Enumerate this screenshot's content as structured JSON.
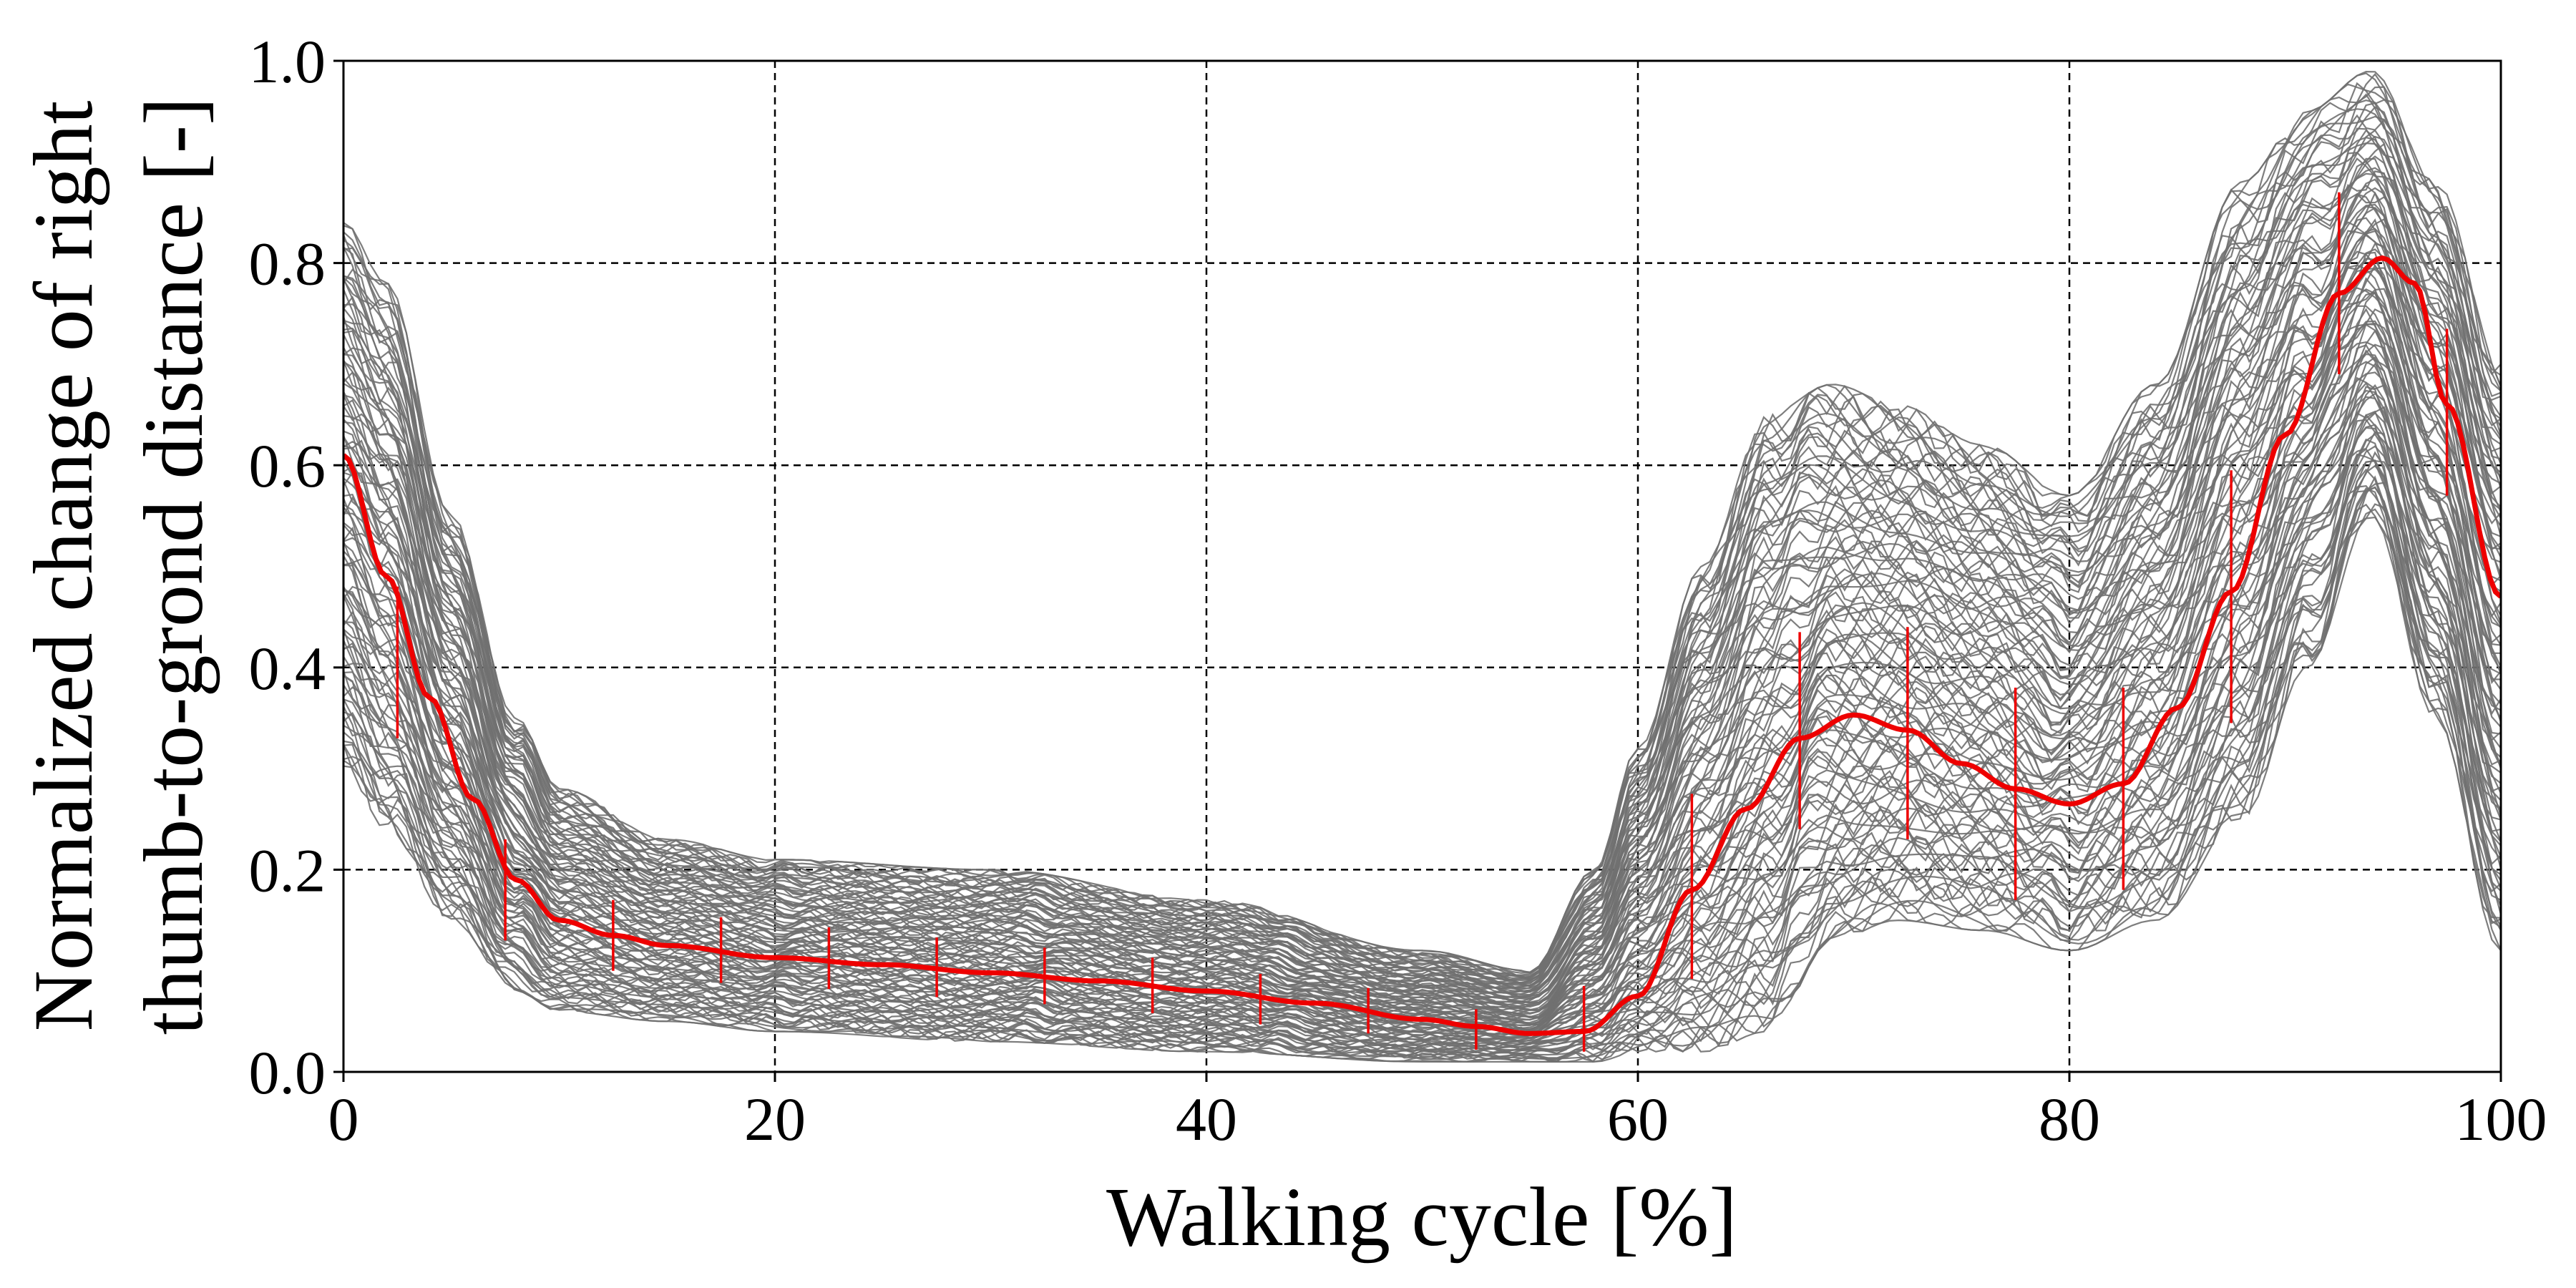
{
  "chart_data": {
    "type": "line",
    "xlabel": "Walking cycle [%]",
    "ylabel_lines": [
      "Normalized change of right",
      "thumb-to-grond distance [-]"
    ],
    "xlim": [
      0,
      100
    ],
    "ylim": [
      0,
      1.0
    ],
    "xticks": [
      0,
      20,
      40,
      60,
      80,
      100
    ],
    "yticks": [
      0.0,
      0.2,
      0.4,
      0.6,
      0.8,
      1.0
    ],
    "xtick_labels": [
      "0",
      "20",
      "40",
      "60",
      "80",
      "100"
    ],
    "ytick_labels": [
      "0.0",
      "0.2",
      "0.4",
      "0.6",
      "0.8",
      "1.0"
    ],
    "grid": true,
    "colors": {
      "trials": "#707070",
      "mean": "#ee0000",
      "grid": "#000000"
    },
    "trial_band": {
      "x": [
        0,
        2,
        5,
        8,
        10,
        15,
        20,
        30,
        40,
        50,
        55,
        58,
        60,
        63,
        66,
        69,
        72,
        76,
        80,
        84,
        88,
        91,
        94,
        97,
        100
      ],
      "lower": [
        0.3,
        0.24,
        0.15,
        0.08,
        0.06,
        0.05,
        0.04,
        0.03,
        0.02,
        0.01,
        0.01,
        0.01,
        0.02,
        0.02,
        0.04,
        0.13,
        0.15,
        0.14,
        0.12,
        0.15,
        0.25,
        0.4,
        0.55,
        0.35,
        0.12
      ],
      "upper": [
        0.84,
        0.78,
        0.55,
        0.35,
        0.28,
        0.23,
        0.21,
        0.2,
        0.17,
        0.12,
        0.1,
        0.2,
        0.32,
        0.5,
        0.65,
        0.68,
        0.66,
        0.62,
        0.57,
        0.68,
        0.88,
        0.95,
        0.99,
        0.88,
        0.7
      ]
    },
    "series": [
      {
        "name": "",
        "x": [
          0,
          2,
          4,
          6,
          8,
          10,
          12.5,
          15,
          20,
          25,
          30,
          35,
          40,
          45,
          50,
          52.5,
          55,
          57.5,
          60,
          62.5,
          65,
          67.5,
          70,
          72.5,
          75,
          77.5,
          80,
          82.5,
          85,
          87.5,
          90,
          92.5,
          94.5,
          96,
          97.5,
          100
        ],
        "y": [
          0.61,
          0.49,
          0.37,
          0.27,
          0.19,
          0.15,
          0.135,
          0.125,
          0.113,
          0.106,
          0.098,
          0.09,
          0.08,
          0.068,
          0.052,
          0.045,
          0.038,
          0.04,
          0.075,
          0.18,
          0.26,
          0.33,
          0.353,
          0.338,
          0.305,
          0.28,
          0.265,
          0.285,
          0.36,
          0.475,
          0.63,
          0.77,
          0.805,
          0.78,
          0.66,
          0.47
        ]
      }
    ],
    "error_bars": {
      "x": [
        2.5,
        7.5,
        12.5,
        17.5,
        22.5,
        27.5,
        32.5,
        37.5,
        42.5,
        47.5,
        52.5,
        57.5,
        62.5,
        67.5,
        72.5,
        77.5,
        82.5,
        87.5,
        92.5,
        97.5
      ],
      "low": [
        0.33,
        0.13,
        0.1,
        0.088,
        0.082,
        0.074,
        0.067,
        0.058,
        0.047,
        0.038,
        0.022,
        0.02,
        0.092,
        0.24,
        0.23,
        0.17,
        0.18,
        0.345,
        0.69,
        0.57
      ],
      "high": [
        0.48,
        0.23,
        0.17,
        0.153,
        0.143,
        0.133,
        0.123,
        0.113,
        0.097,
        0.083,
        0.062,
        0.085,
        0.275,
        0.435,
        0.44,
        0.38,
        0.38,
        0.595,
        0.87,
        0.735
      ]
    }
  }
}
